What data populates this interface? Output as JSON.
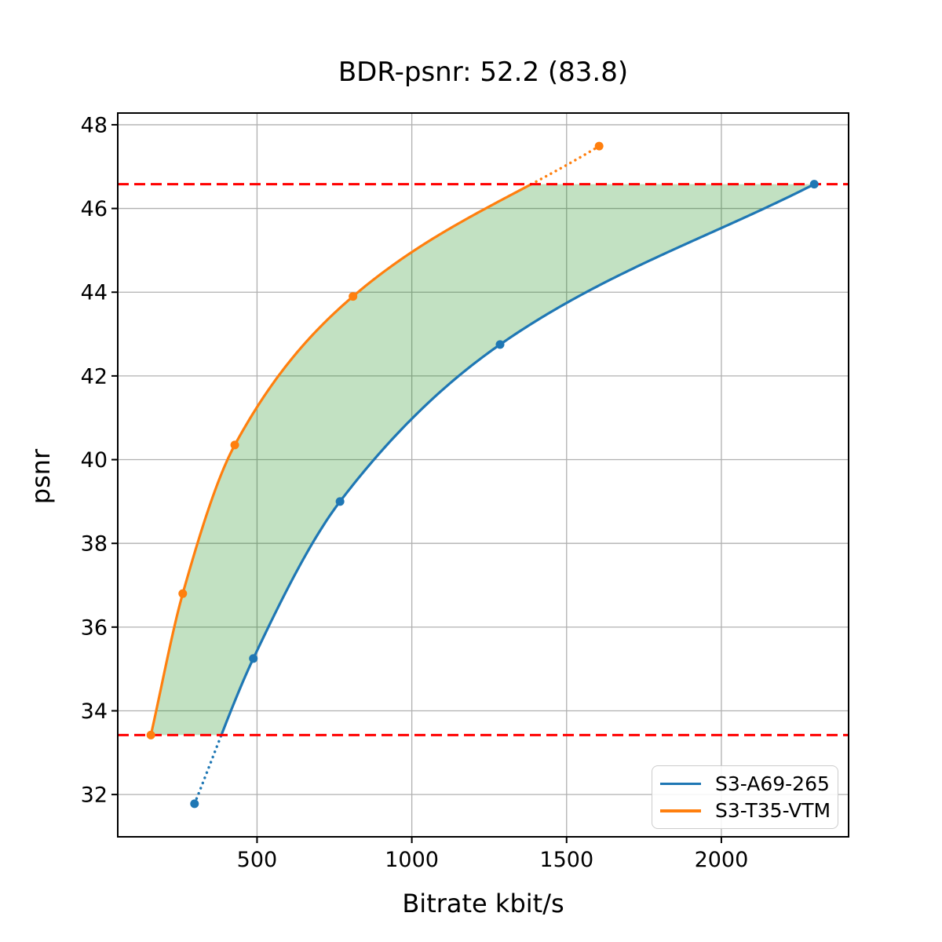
{
  "chart_data": {
    "type": "line",
    "title": "BDR-psnr: 52.2 (83.8)",
    "xlabel": "Bitrate kbit/s",
    "ylabel": "psnr",
    "xlim": [
      50,
      2411
    ],
    "ylim": [
      30.99,
      48.28
    ],
    "xticks": [
      500,
      1000,
      1500,
      2000
    ],
    "yticks": [
      32,
      34,
      36,
      38,
      40,
      42,
      44,
      46,
      48
    ],
    "grid": true,
    "grid_color": "#b0b0b0",
    "axis_color": "#000000",
    "legend_position": "lower right",
    "series": [
      {
        "name": "S3-A69-265",
        "color": "#1f77b4",
        "x": [
          298,
          488,
          768,
          1285,
          2300
        ],
        "y": [
          31.78,
          35.25,
          39.0,
          42.75,
          46.58
        ],
        "dotted_below_y": 33.42
      },
      {
        "name": "S3-T35-VTM",
        "color": "#ff7f0e",
        "x": [
          157,
          260,
          428,
          810,
          1605
        ],
        "y": [
          33.42,
          36.8,
          40.35,
          43.9,
          47.49
        ],
        "dotted_above_y": 46.58
      }
    ],
    "hlines": [
      {
        "y": 46.58,
        "color": "#ff0000",
        "style": "dashed"
      },
      {
        "y": 33.42,
        "color": "#ff0000",
        "style": "dashed"
      }
    ],
    "fill_between_curves": {
      "color": "#008000",
      "opacity": 0.24,
      "y_from": 33.42,
      "y_to": 46.58
    }
  }
}
